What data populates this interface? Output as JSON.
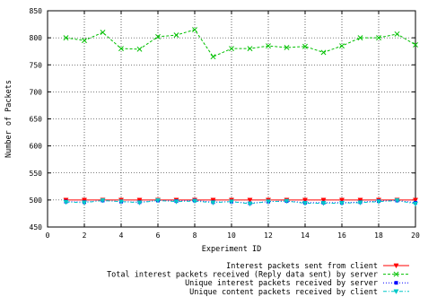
{
  "chart_data": {
    "type": "line",
    "title": "",
    "xlabel": "Experiment ID",
    "ylabel": "Number of Packets",
    "xlim": [
      0,
      20
    ],
    "ylim": [
      450,
      850
    ],
    "x_ticks": [
      0,
      2,
      4,
      6,
      8,
      10,
      12,
      14,
      16,
      18,
      20
    ],
    "y_ticks": [
      450,
      500,
      550,
      600,
      650,
      700,
      750,
      800,
      850
    ],
    "grid": true,
    "legend_position": "bottom-right",
    "x": [
      1,
      2,
      3,
      4,
      5,
      6,
      7,
      8,
      9,
      10,
      11,
      12,
      13,
      14,
      15,
      16,
      17,
      18,
      19,
      20
    ],
    "series": [
      {
        "name": "Interest packets sent from client",
        "color": "#ff0000",
        "style": "solid",
        "marker": "triangle-down",
        "values": [
          500,
          500,
          500,
          500,
          500,
          500,
          500,
          500,
          500,
          500,
          500,
          500,
          500,
          500,
          500,
          500,
          500,
          500,
          500,
          500
        ]
      },
      {
        "name": "Total interest packets received (Reply data sent) by server",
        "color": "#00c000",
        "style": "dashed",
        "marker": "x",
        "values": [
          800,
          795,
          810,
          780,
          779,
          802,
          805,
          815,
          765,
          780,
          780,
          785,
          782,
          784,
          773,
          785,
          800,
          800,
          807,
          787
        ]
      },
      {
        "name": "Unique interest packets received by server",
        "color": "#0000ff",
        "style": "dotted",
        "marker": "star",
        "values": [
          497,
          496,
          499,
          497,
          496,
          499,
          498,
          499,
          496,
          497,
          494,
          497,
          498,
          495,
          495,
          495,
          496,
          498,
          499,
          495
        ]
      },
      {
        "name": "Unique content packets received by client",
        "color": "#00c8c8",
        "style": "dashdot",
        "marker": "triangle-down",
        "values": [
          496,
          495,
          499,
          497,
          495,
          499,
          497,
          498,
          495,
          497,
          493,
          497,
          498,
          494,
          494,
          494,
          495,
          497,
          499,
          493
        ]
      }
    ]
  }
}
